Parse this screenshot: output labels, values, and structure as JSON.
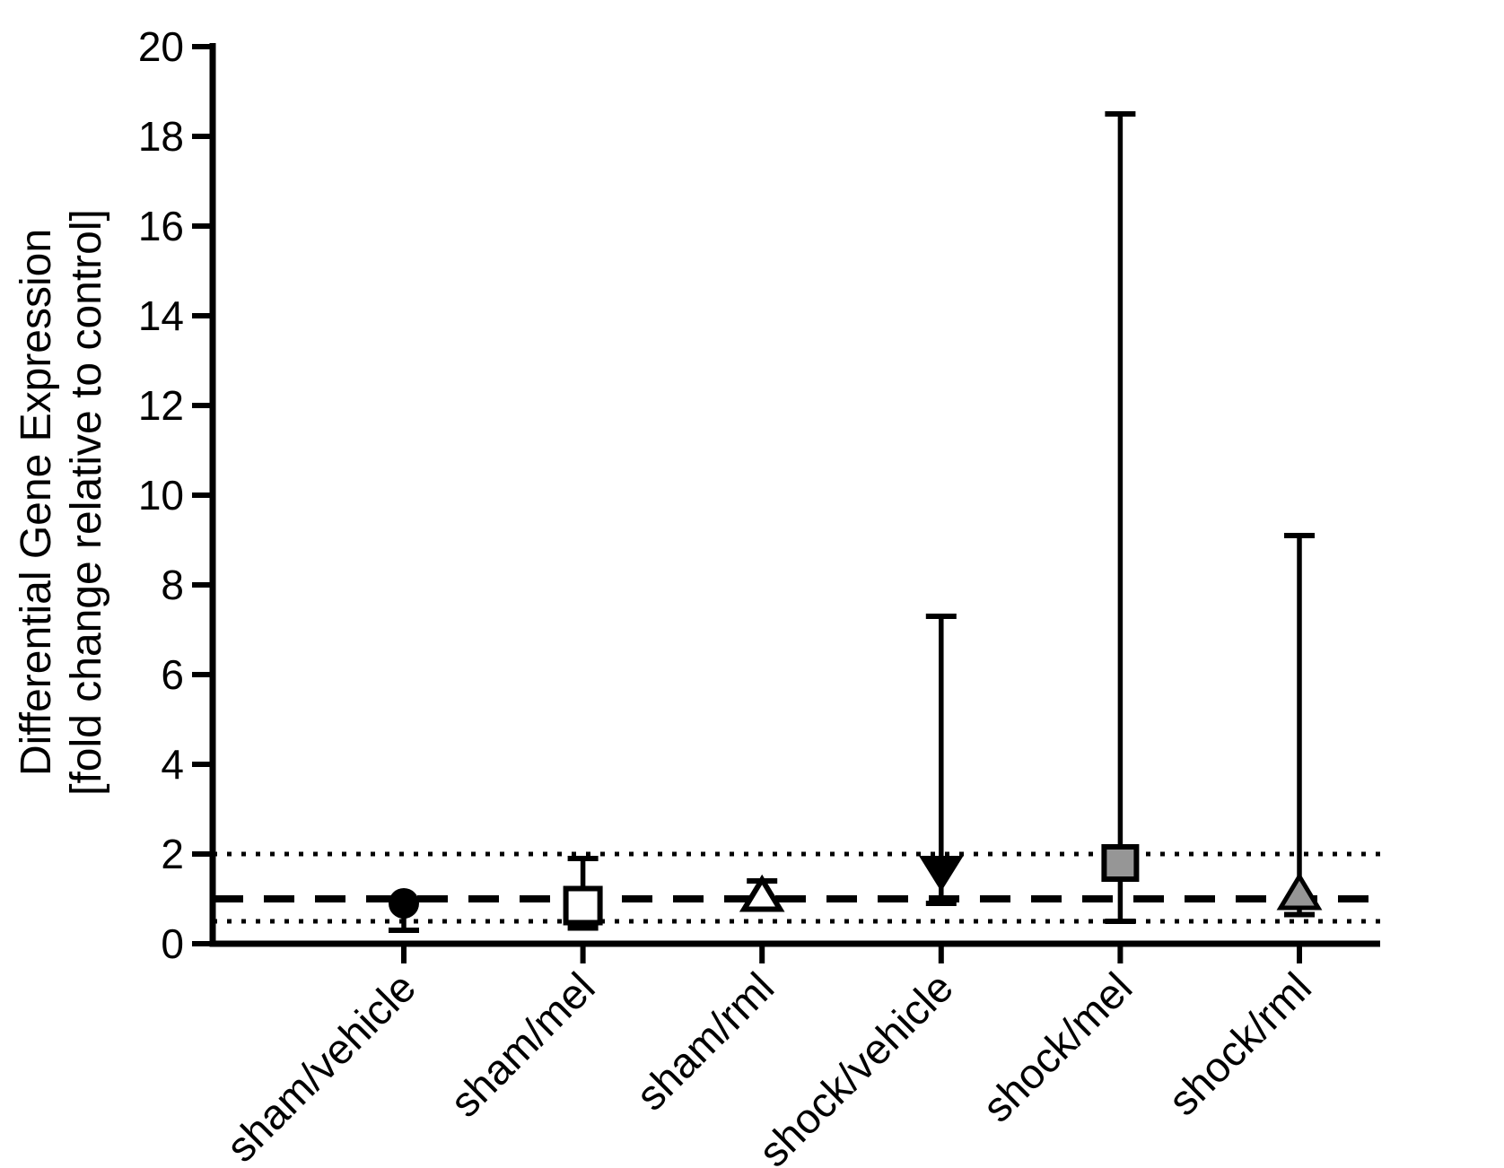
{
  "figure": {
    "background": "#ffffff"
  },
  "chart_data": {
    "type": "scatter",
    "title": "",
    "ylabel_line1": "Differential Gene Expression",
    "ylabel_line2": "[fold change relative to control]",
    "xlabel": "",
    "ylim": [
      0,
      20
    ],
    "yticks": [
      0,
      2,
      4,
      6,
      8,
      10,
      12,
      14,
      16,
      18,
      20
    ],
    "grid": "off",
    "legend": "none",
    "reference_lines": [
      {
        "value": 1,
        "style": "dashed"
      },
      {
        "value": 2,
        "style": "dotted"
      },
      {
        "value": 0.5,
        "style": "dotted"
      }
    ],
    "categories": [
      "sham/vehicle",
      "sham/mel",
      "sham/rml",
      "shock/vehicle",
      "shock/mel",
      "shock/rml"
    ],
    "series": [
      {
        "label": "sham/vehicle",
        "marker": "filled-circle",
        "fill": "#000000",
        "value": 0.9,
        "upper": null,
        "lower": 0.3
      },
      {
        "label": "sham/mel",
        "marker": "open-square",
        "fill": "#ffffff",
        "value": 0.85,
        "upper": 1.9,
        "lower": 0.35
      },
      {
        "label": "sham/rml",
        "marker": "open-triangle-up",
        "fill": "#ffffff",
        "value": 1.05,
        "upper": 1.4,
        "lower": 0.8
      },
      {
        "label": "shock/vehicle",
        "marker": "filled-triangle-down",
        "fill": "#000000",
        "value": 1.6,
        "upper": 7.3,
        "lower": 0.9
      },
      {
        "label": "shock/mel",
        "marker": "filled-square",
        "fill": "#969696",
        "value": 1.8,
        "upper": 18.5,
        "lower": 0.5
      },
      {
        "label": "shock/rml",
        "marker": "filled-triangle-up",
        "fill": "#969696",
        "value": 1.1,
        "upper": 9.1,
        "lower": 0.65
      }
    ]
  },
  "colors": {
    "axis": "#000000",
    "marker_gray": "#969696",
    "background": "#ffffff"
  }
}
